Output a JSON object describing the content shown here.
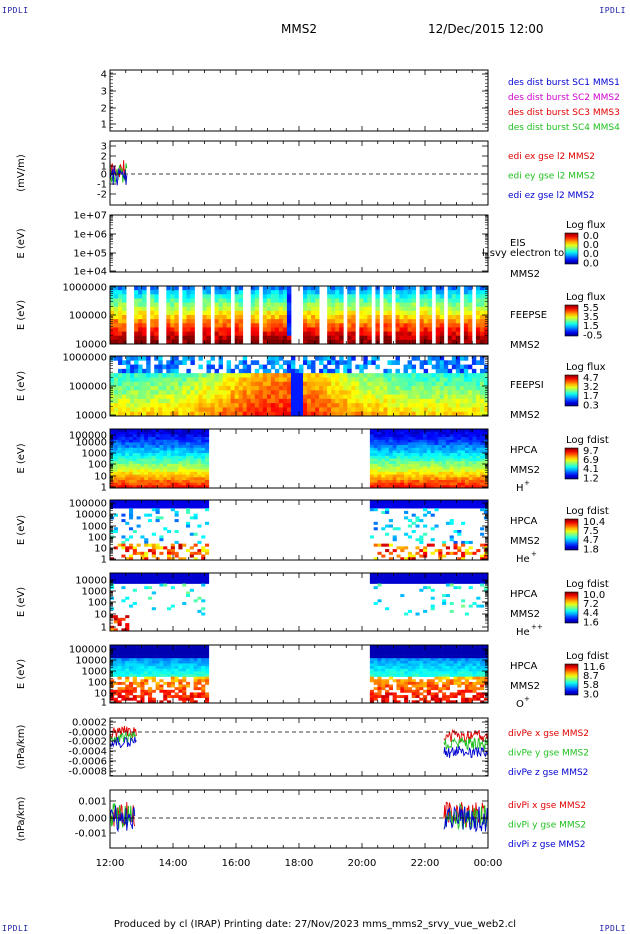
{
  "corner_labels": {
    "top_left": "IPDLI",
    "top_right": "IPDLI",
    "bottom_left": "IPDLI",
    "bottom_right": "IPDLI"
  },
  "header": {
    "spacecraft": "MMS2",
    "datetime": "12/Dec/2015 12:00"
  },
  "footer": {
    "text": "Produced by cl (IRAP)    Printing date: 27/Nov/2023    mms_mms2_srvy_vue_web2.cl"
  },
  "colors": {
    "red": "#e00000",
    "green": "#20c020",
    "blue": "#0000d0",
    "magenta": "#d000d0"
  },
  "chart_data": [
    {
      "type": "line",
      "ylabel": "",
      "yticks": [
        "4",
        "3",
        "2",
        "1"
      ],
      "ylim": [
        0.5,
        4.5
      ],
      "legend": [
        {
          "text": "des dist burst SC1 MMS1",
          "color": "#0000d0"
        },
        {
          "text": "des dist burst SC2 MMS2",
          "color": "#d000d0"
        },
        {
          "text": "des dist burst SC3 MMS3",
          "color": "#e00000"
        },
        {
          "text": "des dist burst SC4 MMS4",
          "color": "#20c020"
        }
      ]
    },
    {
      "type": "line",
      "ylabel": "(mV/m)",
      "yticks": [
        "3",
        "2",
        "1",
        "0",
        "-1",
        "-2"
      ],
      "ylim": [
        -2.5,
        3
      ],
      "legend": [
        {
          "text": "edi ex gse l2 MMS2",
          "color": "#e00000"
        },
        {
          "text": "edi ey gse l2 MMS2",
          "color": "#20c020"
        },
        {
          "text": "edi ez gse l2 MMS2",
          "color": "#0000d0"
        }
      ]
    },
    {
      "type": "heatmap",
      "ylabel": "E (eV)",
      "yticks": [
        "1e+07",
        "1e+06",
        "1e+05",
        "1e+04"
      ],
      "yscale": "log",
      "instrument": [
        "EIS",
        "MMS2"
      ],
      "overlay_text": "l_svy electron to",
      "cbar_title": "Log flux",
      "cbar_ticks": [
        "0.0",
        "0.0",
        "0.0",
        "0.0"
      ]
    },
    {
      "type": "heatmap",
      "ylabel": "E (eV)",
      "yticks": [
        "1000000",
        "100000",
        "10000"
      ],
      "yscale": "log",
      "instrument": [
        "FEEPSE",
        "MMS2"
      ],
      "cbar_title": "Log flux",
      "cbar_ticks": [
        "5.5",
        "3.5",
        "1.5",
        "-0.5"
      ]
    },
    {
      "type": "heatmap",
      "ylabel": "E (eV)",
      "yticks": [
        "1000000",
        "100000",
        "10000"
      ],
      "yscale": "log",
      "instrument": [
        "FEEPSI",
        "MMS2"
      ],
      "cbar_title": "Log flux",
      "cbar_ticks": [
        "4.7",
        "3.2",
        "1.7",
        "0.3"
      ]
    },
    {
      "type": "heatmap",
      "ylabel": "E (eV)",
      "yticks": [
        "100000",
        "10000",
        "1000",
        "100",
        "10",
        "1"
      ],
      "yscale": "log",
      "instrument": [
        "HPCA",
        "MMS2"
      ],
      "species": "H",
      "species_sup": "+",
      "cbar_title": "Log fdist",
      "cbar_ticks": [
        "9.7",
        "6.9",
        "4.1",
        "1.2"
      ],
      "data_intervals": [
        [
          "12:00",
          "15:05"
        ],
        [
          "20:15",
          "00:00"
        ]
      ]
    },
    {
      "type": "heatmap",
      "ylabel": "E (eV)",
      "yticks": [
        "100000",
        "10000",
        "1000",
        "100",
        "10",
        "1"
      ],
      "yscale": "log",
      "instrument": [
        "HPCA",
        "MMS2"
      ],
      "species": "He",
      "species_sup": "+",
      "cbar_title": "Log fdist",
      "cbar_ticks": [
        "10.4",
        "7.5",
        "4.7",
        "1.8"
      ],
      "data_intervals": [
        [
          "12:00",
          "15:05"
        ],
        [
          "20:15",
          "00:00"
        ]
      ]
    },
    {
      "type": "heatmap",
      "ylabel": "E (eV)",
      "yticks": [
        "10000",
        "1000",
        "100",
        "10",
        "1"
      ],
      "yscale": "log",
      "instrument": [
        "HPCA",
        "MMS2"
      ],
      "species": "He",
      "species_sup": "++",
      "cbar_title": "Log fdist",
      "cbar_ticks": [
        "10.0",
        "7.2",
        "4.4",
        "1.6"
      ],
      "data_intervals": [
        [
          "12:00",
          "15:05"
        ],
        [
          "20:15",
          "00:00"
        ]
      ]
    },
    {
      "type": "heatmap",
      "ylabel": "E (eV)",
      "yticks": [
        "100000",
        "10000",
        "1000",
        "100",
        "10",
        "1"
      ],
      "yscale": "log",
      "instrument": [
        "HPCA",
        "MMS2"
      ],
      "species": "O",
      "species_sup": "+",
      "cbar_title": "Log fdist",
      "cbar_ticks": [
        "11.6",
        "8.7",
        "5.8",
        "3.0"
      ],
      "data_intervals": [
        [
          "12:00",
          "15:05"
        ],
        [
          "20:15",
          "00:00"
        ]
      ]
    },
    {
      "type": "line",
      "ylabel": "(nPa/km)",
      "yticks": [
        "0.0002",
        "-0.0000",
        "-0.0002",
        "-0.0004",
        "-0.0006",
        "-0.0008"
      ],
      "ylim": [
        -0.00085,
        0.00025
      ],
      "legend": [
        {
          "text": "divPe x gse MMS2",
          "color": "#e00000"
        },
        {
          "text": "divPe y gse MMS2",
          "color": "#20c020"
        },
        {
          "text": "divPe z gse MMS2",
          "color": "#0000d0"
        }
      ]
    },
    {
      "type": "line",
      "ylabel": "(nPa/km)",
      "yticks": [
        "0.001",
        "0.000",
        "-0.001"
      ],
      "ylim": [
        -0.0016,
        0.0016
      ],
      "legend": [
        {
          "text": "divPi x gse MMS2",
          "color": "#e00000"
        },
        {
          "text": "divPi y gse MMS2",
          "color": "#20c020"
        },
        {
          "text": "divPi z gse MMS2",
          "color": "#0000d0"
        }
      ]
    }
  ],
  "x_axis": {
    "tick_labels": [
      "12:00",
      "14:00",
      "16:00",
      "18:00",
      "20:00",
      "22:00",
      "00:00"
    ]
  }
}
